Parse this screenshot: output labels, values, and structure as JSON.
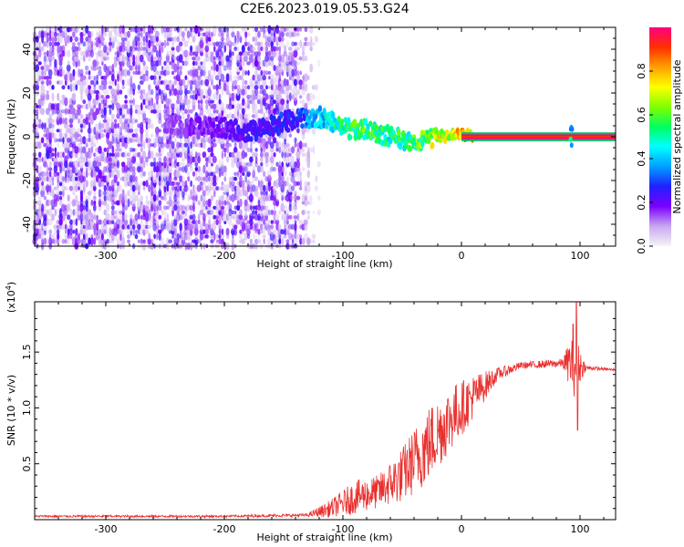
{
  "title": "C2E6.2023.019.05.53.G24",
  "chart_data": [
    {
      "type": "heatmap",
      "xlabel": "Height of straight line (km)",
      "ylabel": "Frequency (Hz)",
      "xlim": [
        -360,
        130
      ],
      "ylim": [
        -50,
        50
      ],
      "xticks": [
        -300,
        -200,
        -100,
        0,
        100
      ],
      "yticks": [
        -40,
        -20,
        0,
        20,
        40
      ],
      "grid": false,
      "colorbar": {
        "label": "Normalized spectral amplitude",
        "range": [
          0,
          1
        ],
        "ticks": [
          0.0,
          0.2,
          0.4,
          0.6,
          0.8
        ],
        "colormap": [
          "#f5f5f5",
          "#c8a8f0",
          "#7a00ff",
          "#2020ff",
          "#00a0ff",
          "#00ffff",
          "#00ff60",
          "#80ff00",
          "#ffff00",
          "#ffa000",
          "#ff3000",
          "#ff0080"
        ]
      },
      "features": {
        "noise_region_x": [
          -360,
          -140
        ],
        "noise_amplitude": [
          0.02,
          0.25
        ],
        "signal_ridge": [
          {
            "x": -250,
            "freq": 5,
            "amp": 0.15
          },
          {
            "x": -200,
            "freq": 4,
            "amp": 0.2
          },
          {
            "x": -180,
            "freq": 2,
            "amp": 0.25
          },
          {
            "x": -140,
            "freq": 8,
            "amp": 0.3
          },
          {
            "x": -120,
            "freq": 9,
            "amp": 0.45
          },
          {
            "x": -100,
            "freq": 4,
            "amp": 0.55
          },
          {
            "x": -80,
            "freq": 3,
            "amp": 0.6
          },
          {
            "x": -60,
            "freq": 0,
            "amp": 0.55
          },
          {
            "x": -40,
            "freq": -2,
            "amp": 0.6
          },
          {
            "x": -20,
            "freq": 0,
            "amp": 0.75
          },
          {
            "x": 0,
            "freq": 1,
            "amp": 0.85
          },
          {
            "x": 50,
            "freq": 0,
            "amp": 1.0
          },
          {
            "x": 100,
            "freq": 0,
            "amp": 1.0
          },
          {
            "x": 130,
            "freq": 0,
            "amp": 1.0
          }
        ]
      }
    },
    {
      "type": "line",
      "xlabel": "Height of straight line (km)",
      "ylabel": "SNR (10 * v/v)",
      "y_multiplier": "(x10⁴)",
      "multiplier_base": "(x10",
      "multiplier_exp": "4",
      "multiplier_close": ")",
      "xlim": [
        -360,
        130
      ],
      "ylim": [
        0,
        1.95
      ],
      "xticks": [
        -300,
        -200,
        -100,
        0,
        100
      ],
      "yticks": [
        0.5,
        1.0,
        1.5
      ],
      "ytick_labels": [
        "0.5",
        "1.0",
        "1.5"
      ],
      "grid": false,
      "series": [
        {
          "color": "#e8312f",
          "envelope": [
            {
              "x": -360,
              "y": 0.03,
              "jitter": 0.01
            },
            {
              "x": -200,
              "y": 0.03,
              "jitter": 0.01
            },
            {
              "x": -130,
              "y": 0.04,
              "jitter": 0.015
            },
            {
              "x": -110,
              "y": 0.1,
              "jitter": 0.08
            },
            {
              "x": -90,
              "y": 0.2,
              "jitter": 0.15
            },
            {
              "x": -70,
              "y": 0.25,
              "jitter": 0.15
            },
            {
              "x": -50,
              "y": 0.4,
              "jitter": 0.25
            },
            {
              "x": -30,
              "y": 0.65,
              "jitter": 0.35
            },
            {
              "x": -10,
              "y": 0.9,
              "jitter": 0.3
            },
            {
              "x": 10,
              "y": 1.1,
              "jitter": 0.2
            },
            {
              "x": 30,
              "y": 1.3,
              "jitter": 0.06
            },
            {
              "x": 50,
              "y": 1.38,
              "jitter": 0.03
            },
            {
              "x": 85,
              "y": 1.4,
              "jitter": 0.04
            },
            {
              "x": 95,
              "y": 1.4,
              "jitter": 0.3
            },
            {
              "x": 105,
              "y": 1.36,
              "jitter": 0.02
            },
            {
              "x": 130,
              "y": 1.34,
              "jitter": 0.01
            }
          ],
          "spikes": [
            {
              "x": 97,
              "y": 1.95
            },
            {
              "x": 98,
              "y": 0.8
            },
            {
              "x": 94,
              "y": 1.75
            }
          ]
        }
      ]
    }
  ]
}
